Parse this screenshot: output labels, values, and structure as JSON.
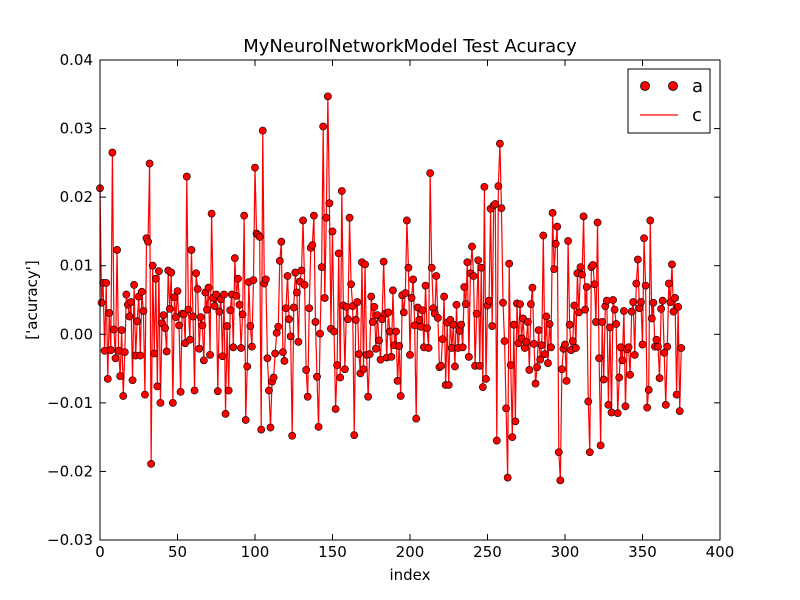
{
  "chart_data": {
    "type": "line",
    "title": "MyNeurolNetworkModel Test Acuracy",
    "xlabel": "index",
    "ylabel": "['acuracy']",
    "xlim": [
      0,
      400
    ],
    "ylim": [
      -0.03,
      0.04
    ],
    "xticks": [
      0,
      50,
      100,
      150,
      200,
      250,
      300,
      350,
      400
    ],
    "xtick_labels": [
      "0",
      "50",
      "100",
      "150",
      "200",
      "250",
      "300",
      "350",
      "400"
    ],
    "yticks": [
      -0.03,
      -0.02,
      -0.01,
      0.0,
      0.01,
      0.02,
      0.03,
      0.04
    ],
    "ytick_labels": [
      "−0.03",
      "−0.02",
      "−0.01",
      "0.00",
      "0.01",
      "0.02",
      "0.03",
      "0.04"
    ],
    "legend": {
      "position": "top-right",
      "entries": [
        "a",
        "c"
      ]
    },
    "grid": false,
    "colors": {
      "line": "#ff0000",
      "marker_fill": "#ff0000",
      "marker_edge": "#000000"
    },
    "series": [
      {
        "name": "a",
        "style": "markers",
        "y": [
          0.0213,
          0.0046,
          0.0075,
          -0.0024,
          0.0075,
          -0.0065,
          0.0031,
          -0.0023,
          0.0265,
          0.0007,
          -0.0035,
          0.0123,
          -0.0024,
          -0.0061,
          0.0006,
          -0.009,
          -0.0026,
          0.0058,
          0.0043,
          0.0026,
          0.0047,
          -0.0067,
          0.0072,
          -0.0031,
          0.0019,
          0.0055,
          -0.0031,
          0.0062,
          0.0034,
          -0.0088,
          0.014,
          0.0135,
          0.0249,
          -0.0189,
          0.01,
          -0.0028,
          0.0081,
          -0.0076,
          0.0092,
          -0.01,
          0.0016,
          0.0028,
          0.0009,
          -0.0025,
          0.0093,
          0.0037,
          0.009,
          -0.01,
          0.0054,
          0.0025,
          0.0063,
          0.0013,
          -0.0084,
          0.003,
          0.0029,
          -0.0013,
          0.023,
          0.0036,
          -0.0008,
          0.0123,
          0.0026,
          -0.0082,
          0.0089,
          0.0066,
          -0.0021,
          0.0025,
          0.0013,
          -0.0038,
          0.0061,
          0.0036,
          0.0068,
          -0.003,
          0.0176,
          0.0053,
          0.0041,
          0.0058,
          -0.0083,
          0.0033,
          0.0051,
          -0.0032,
          0.0058,
          -0.0116,
          0.0012,
          -0.0082,
          0.0035,
          0.0058,
          -0.0019,
          0.0111,
          0.0056,
          0.0081,
          0.0043,
          -0.002,
          0.0029,
          0.0173,
          -0.0125,
          -0.0047,
          0.0076,
          0.0012,
          -0.0018,
          0.0079,
          0.0243,
          0.0147,
          0.0145,
          0.0142,
          -0.0139,
          0.0297,
          0.0074,
          0.008,
          -0.0035,
          -0.0082,
          -0.0136,
          -0.0069,
          -0.0063,
          -0.0028,
          0.0002,
          0.0011,
          0.0107,
          0.0135,
          -0.0026,
          -0.0039,
          0.0038,
          0.0085,
          0.0022,
          -0.0003,
          -0.0148,
          0.0039,
          0.009,
          0.0061,
          -0.0011,
          0.0077,
          0.0093,
          0.0166,
          0.0072,
          -0.0052,
          -0.0091,
          0.0038,
          0.0126,
          0.013,
          0.0173,
          0.0018,
          -0.0062,
          -0.0135,
          0.0001,
          0.0098,
          0.0303,
          0.0053,
          0.017,
          0.0347,
          0.0191,
          0.0008,
          0.015,
          0.0004,
          -0.0109,
          -0.0045,
          0.0118,
          -0.0063,
          0.0209,
          0.0042,
          -0.0051,
          0.004,
          0.0022,
          0.017,
          0.0073,
          0.0041,
          -0.0147,
          0.0021,
          0.0047,
          -0.0029,
          -0.0057,
          0.0105,
          -0.0051,
          0.0102,
          -0.003,
          -0.0091,
          -0.0029,
          0.0055,
          0.0018,
          0.004,
          -0.0021,
          0.0028,
          -0.0009,
          -0.0037,
          0.0022,
          0.0106,
          0.003,
          -0.0034,
          0.0032,
          0.0004,
          -0.0033,
          0.0064,
          -0.0016,
          0.0004,
          -0.0068,
          -0.0017,
          -0.009,
          0.0057,
          0.0032,
          0.006,
          0.0166,
          0.0097,
          -0.003,
          0.0053,
          0.008,
          0.0013,
          -0.0123,
          0.0039,
          0.0021,
          0.0011,
          0.0035,
          -0.0019,
          0.0071,
          0.0009,
          -0.002,
          0.0235,
          0.0097,
          0.0038,
          0.003,
          0.0085,
          0.0024,
          -0.0048,
          -0.0046,
          -0.0007,
          0.0055,
          -0.0074,
          0.0017,
          -0.0074,
          0.0021,
          -0.002,
          0.0014,
          -0.0047,
          0.0043,
          -0.002,
          0.0005,
          0.0014,
          -0.0019,
          0.0069,
          0.0044,
          0.0105,
          -0.0033,
          0.0089,
          0.0128,
          0.0085,
          -0.0046,
          0.003,
          0.0108,
          -0.0046,
          0.0097,
          -0.0077,
          0.0215,
          -0.0065,
          0.0042,
          0.0049,
          0.0183,
          0.0012,
          0.0188,
          0.019,
          -0.0155,
          0.0216,
          0.0278,
          0.0184,
          0.0046,
          -0.001,
          -0.0108,
          -0.0209,
          0.0103,
          -0.0045,
          -0.015,
          0.0014,
          -0.0127,
          0.0045,
          -0.0013,
          0.0044,
          -0.0006,
          0.0023,
          -0.002,
          -0.0011,
          0.0018,
          -0.0052,
          0.0044,
          0.0068,
          -0.0014,
          -0.0072,
          -0.0048,
          0.0006,
          -0.0037,
          -0.0016,
          0.0144,
          -0.0029,
          0.0026,
          -0.0042,
          0.0015,
          -0.0019,
          0.0177,
          0.0095,
          0.0132,
          0.0157,
          -0.0172,
          -0.0213,
          -0.0051,
          -0.0021,
          -0.0015,
          -0.0068,
          0.0136,
          0.0014,
          -0.0023,
          -0.001,
          0.0042,
          -0.002,
          0.0089,
          0.0032,
          0.0098,
          0.0087,
          0.0172,
          0.0036,
          0.0069,
          -0.0098,
          -0.0172,
          0.0098,
          0.0101,
          0.0073,
          0.0018,
          0.0163,
          -0.0035,
          -0.0162,
          0.0018,
          -0.0066,
          0.0041,
          0.0049,
          -0.0103,
          0.001,
          -0.0114,
          0.005,
          0.0036,
          0.0015,
          -0.0115,
          -0.0063,
          -0.0019,
          -0.0038,
          0.0034,
          -0.0105,
          -0.0022,
          -0.0019,
          -0.0059,
          0.0033,
          0.0047,
          -0.003,
          0.0074,
          0.0109,
          0.0038,
          0.0047,
          -0.0015,
          0.014,
          0.0071,
          -0.0107,
          -0.0081,
          0.0166,
          0.0023,
          0.0046,
          -0.0018,
          -0.0008,
          -0.0018,
          -0.0064,
          0.0037,
          0.0049,
          -0.0027,
          -0.0103,
          -0.0018,
          0.0074,
          0.0047,
          0.0102,
          0.0033,
          0.0053,
          -0.0088,
          0.004,
          -0.0112,
          -0.002
        ]
      },
      {
        "name": "c",
        "style": "line",
        "y": "same as a"
      }
    ]
  }
}
